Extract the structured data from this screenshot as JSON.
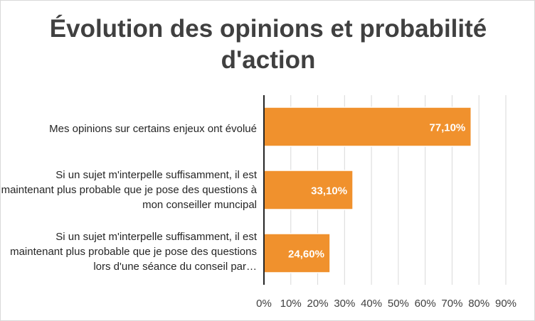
{
  "chart_data": {
    "type": "bar",
    "orientation": "horizontal",
    "title": "Évolution des opinions et probabilité d'action",
    "categories": [
      "Mes opinions sur certains enjeux ont évolué",
      "Si un sujet m'interpelle suffisamment, il est maintenant plus probable que je pose des questions à mon conseiller muncipal",
      "Si un sujet m'interpelle suffisamment, il est maintenant plus probable que je pose des questions lors d'une séance du conseil par…"
    ],
    "values": [
      77.1,
      33.1,
      24.6
    ],
    "data_labels": [
      "77,10%",
      "33,10%",
      "24,60%"
    ],
    "xlim": [
      0,
      90
    ],
    "x_ticks": [
      "0%",
      "10%",
      "20%",
      "30%",
      "40%",
      "50%",
      "60%",
      "70%",
      "80%",
      "90%"
    ],
    "grid": true,
    "legend": "none",
    "bar_color": "#f0912d",
    "data_label_color": "#ffffff"
  }
}
